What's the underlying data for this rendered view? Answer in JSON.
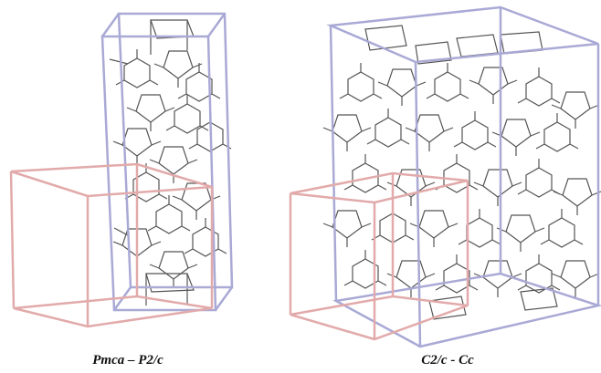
{
  "panels": [
    {
      "caption": "Pmca – P2/c"
    },
    {
      "caption": "C2/c - Cc"
    }
  ]
}
